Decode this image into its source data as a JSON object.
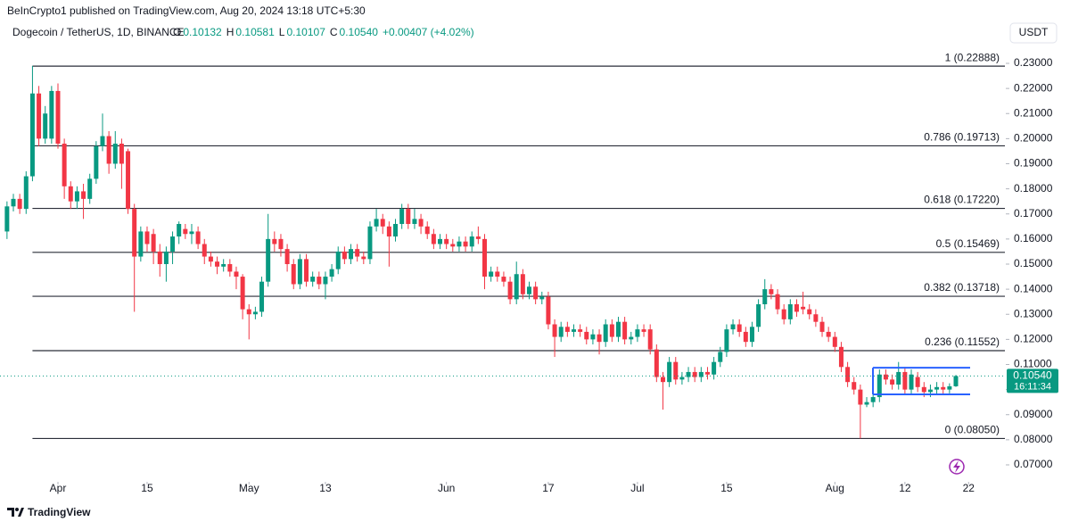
{
  "header": {
    "published": "BeInCrypto1 published on TradingView.com, Aug 20, 2024 13:18 UTC+5:30",
    "symbol": "Dogecoin / TetherUS, 1D, BINANCE",
    "ohlc": [
      {
        "key": "O",
        "value": "0.10132"
      },
      {
        "key": "H",
        "value": "0.10581"
      },
      {
        "key": "L",
        "value": "0.10107"
      },
      {
        "key": "C",
        "value": "0.10540"
      }
    ],
    "change": "+0.00407 (+4.02%)",
    "currency": "USDT"
  },
  "footer": {
    "brand": "TradingView"
  },
  "chart_data": {
    "type": "candlestick",
    "up_color": "#089981",
    "down_color": "#f23645",
    "open": [
      0.163,
      0.173,
      0.176,
      0.172,
      0.185,
      0.218,
      0.2,
      0.2,
      0.219,
      0.198,
      0.181,
      0.175,
      0.179,
      0.176,
      0.184,
      0.197,
      0.201,
      0.19,
      0.198,
      0.195,
      0.172,
      0.153,
      0.163,
      0.162,
      0.155,
      0.15,
      0.155,
      0.161,
      0.164,
      0.162,
      0.163,
      0.158,
      0.153,
      0.151,
      0.149,
      0.15,
      0.147,
      0.145,
      0.132,
      0.13,
      0.131,
      0.143,
      0.16,
      0.16,
      0.156,
      0.15,
      0.142,
      0.152,
      0.143,
      0.145,
      0.142,
      0.145,
      0.148,
      0.155,
      0.152,
      0.156,
      0.153,
      0.152,
      0.165,
      0.168,
      0.165,
      0.161,
      0.166,
      0.172,
      0.166,
      0.168,
      0.165,
      0.162,
      0.158,
      0.16,
      0.158,
      0.157,
      0.159,
      0.157,
      0.161,
      0.16,
      0.145,
      0.147,
      0.145,
      0.143,
      0.136,
      0.146,
      0.138,
      0.141,
      0.136,
      0.137,
      0.126,
      0.121,
      0.125,
      0.123,
      0.124,
      0.123,
      0.12,
      0.122,
      0.119,
      0.126,
      0.121,
      0.127,
      0.12,
      0.121,
      0.124,
      0.124,
      0.116,
      0.105,
      0.103,
      0.111,
      0.104,
      0.105,
      0.107,
      0.105,
      0.107,
      0.106,
      0.111,
      0.115,
      0.124,
      0.126,
      0.123,
      0.119,
      0.125,
      0.134,
      0.14,
      0.138,
      0.132,
      0.128,
      0.134,
      0.133,
      0.132,
      0.13,
      0.127,
      0.123,
      0.121,
      0.117,
      0.109,
      0.103,
      0.1,
      0.094,
      0.095,
      0.097,
      0.106,
      0.104,
      0.102,
      0.107,
      0.1,
      0.105,
      0.101,
      0.099,
      0.1,
      0.101,
      0.1,
      0.10132
    ],
    "high": [
      0.175,
      0.178,
      0.178,
      0.187,
      0.229,
      0.221,
      0.213,
      0.221,
      0.222,
      0.2,
      0.183,
      0.181,
      0.182,
      0.186,
      0.199,
      0.21,
      0.203,
      0.203,
      0.2,
      0.196,
      0.174,
      0.165,
      0.165,
      0.164,
      0.158,
      0.157,
      0.163,
      0.167,
      0.166,
      0.166,
      0.165,
      0.16,
      0.155,
      0.153,
      0.152,
      0.152,
      0.149,
      0.146,
      0.134,
      0.133,
      0.145,
      0.17,
      0.163,
      0.162,
      0.158,
      0.152,
      0.154,
      0.154,
      0.147,
      0.147,
      0.147,
      0.15,
      0.157,
      0.157,
      0.158,
      0.158,
      0.155,
      0.167,
      0.172,
      0.17,
      0.167,
      0.168,
      0.174,
      0.174,
      0.172,
      0.17,
      0.167,
      0.164,
      0.162,
      0.162,
      0.16,
      0.161,
      0.161,
      0.163,
      0.165,
      0.162,
      0.149,
      0.149,
      0.147,
      0.145,
      0.151,
      0.148,
      0.143,
      0.143,
      0.139,
      0.139,
      0.128,
      0.127,
      0.127,
      0.126,
      0.126,
      0.125,
      0.124,
      0.124,
      0.128,
      0.128,
      0.129,
      0.129,
      0.123,
      0.126,
      0.126,
      0.126,
      0.118,
      0.107,
      0.113,
      0.113,
      0.107,
      0.109,
      0.109,
      0.109,
      0.109,
      0.113,
      0.117,
      0.126,
      0.128,
      0.128,
      0.125,
      0.127,
      0.136,
      0.144,
      0.142,
      0.14,
      0.134,
      0.136,
      0.136,
      0.139,
      0.134,
      0.132,
      0.129,
      0.125,
      0.123,
      0.119,
      0.111,
      0.105,
      0.102,
      0.097,
      0.099,
      0.108,
      0.108,
      0.106,
      0.111,
      0.109,
      0.108,
      0.107,
      0.103,
      0.102,
      0.103,
      0.103,
      0.1025,
      0.10581
    ],
    "low": [
      0.16,
      0.171,
      0.17,
      0.17,
      0.183,
      0.197,
      0.198,
      0.198,
      0.196,
      0.176,
      0.172,
      0.172,
      0.168,
      0.174,
      0.182,
      0.195,
      0.186,
      0.188,
      0.18,
      0.17,
      0.131,
      0.151,
      0.155,
      0.15,
      0.145,
      0.143,
      0.15,
      0.158,
      0.16,
      0.158,
      0.156,
      0.15,
      0.149,
      0.146,
      0.147,
      0.145,
      0.14,
      0.128,
      0.12,
      0.128,
      0.129,
      0.141,
      0.155,
      0.153,
      0.147,
      0.14,
      0.14,
      0.141,
      0.141,
      0.14,
      0.136,
      0.143,
      0.146,
      0.15,
      0.15,
      0.151,
      0.15,
      0.15,
      0.163,
      0.162,
      0.149,
      0.159,
      0.164,
      0.164,
      0.164,
      0.162,
      0.16,
      0.156,
      0.156,
      0.156,
      0.155,
      0.155,
      0.155,
      0.155,
      0.158,
      0.14,
      0.143,
      0.143,
      0.141,
      0.134,
      0.134,
      0.136,
      0.136,
      0.134,
      0.134,
      0.124,
      0.113,
      0.119,
      0.121,
      0.121,
      0.121,
      0.118,
      0.118,
      0.114,
      0.117,
      0.119,
      0.119,
      0.118,
      0.118,
      0.119,
      0.121,
      0.114,
      0.103,
      0.092,
      0.101,
      0.102,
      0.102,
      0.103,
      0.103,
      0.103,
      0.104,
      0.104,
      0.109,
      0.113,
      0.122,
      0.121,
      0.117,
      0.117,
      0.123,
      0.132,
      0.136,
      0.13,
      0.126,
      0.126,
      0.129,
      0.13,
      0.128,
      0.125,
      0.121,
      0.119,
      0.115,
      0.107,
      0.101,
      0.098,
      0.0805,
      0.093,
      0.093,
      0.095,
      0.102,
      0.1,
      0.1,
      0.098,
      0.098,
      0.099,
      0.097,
      0.097,
      0.098,
      0.098,
      0.0985,
      0.10107
    ],
    "close": [
      0.173,
      0.176,
      0.172,
      0.185,
      0.218,
      0.2,
      0.21,
      0.219,
      0.198,
      0.181,
      0.175,
      0.179,
      0.176,
      0.184,
      0.197,
      0.201,
      0.19,
      0.198,
      0.19,
      0.172,
      0.153,
      0.163,
      0.158,
      0.155,
      0.15,
      0.155,
      0.161,
      0.166,
      0.162,
      0.163,
      0.158,
      0.153,
      0.151,
      0.149,
      0.15,
      0.147,
      0.145,
      0.132,
      0.13,
      0.131,
      0.143,
      0.16,
      0.158,
      0.156,
      0.15,
      0.142,
      0.152,
      0.143,
      0.145,
      0.142,
      0.145,
      0.148,
      0.155,
      0.152,
      0.156,
      0.153,
      0.152,
      0.165,
      0.168,
      0.165,
      0.161,
      0.166,
      0.172,
      0.166,
      0.168,
      0.165,
      0.162,
      0.158,
      0.16,
      0.158,
      0.157,
      0.159,
      0.157,
      0.161,
      0.16,
      0.145,
      0.147,
      0.145,
      0.143,
      0.136,
      0.146,
      0.138,
      0.141,
      0.136,
      0.137,
      0.126,
      0.121,
      0.125,
      0.123,
      0.124,
      0.123,
      0.12,
      0.122,
      0.119,
      0.126,
      0.121,
      0.127,
      0.12,
      0.121,
      0.124,
      0.123,
      0.116,
      0.105,
      0.103,
      0.111,
      0.104,
      0.105,
      0.107,
      0.105,
      0.107,
      0.106,
      0.111,
      0.115,
      0.124,
      0.126,
      0.123,
      0.119,
      0.125,
      0.134,
      0.14,
      0.138,
      0.132,
      0.128,
      0.134,
      0.131,
      0.132,
      0.13,
      0.127,
      0.123,
      0.121,
      0.117,
      0.109,
      0.103,
      0.1,
      0.094,
      0.095,
      0.097,
      0.106,
      0.104,
      0.102,
      0.107,
      0.1,
      0.106,
      0.101,
      0.099,
      0.1,
      0.101,
      0.1,
      0.1013,
      0.1054
    ],
    "xlim": [
      -1.1,
      156.7
    ],
    "xticks": [
      {
        "value": 8,
        "label": "Apr"
      },
      {
        "value": 22,
        "label": "15"
      },
      {
        "value": 38,
        "label": "May"
      },
      {
        "value": 50,
        "label": "13"
      },
      {
        "value": 69,
        "label": "Jun"
      },
      {
        "value": 85,
        "label": "17"
      },
      {
        "value": 99,
        "label": "Jul"
      },
      {
        "value": 113,
        "label": "15"
      },
      {
        "value": 130,
        "label": "Aug"
      },
      {
        "value": 141,
        "label": "12"
      },
      {
        "value": 151,
        "label": "22"
      }
    ],
    "ylim": [
      0.06324,
      0.23569
    ],
    "yticks": [
      {
        "value": 0.07,
        "label": "0.07000"
      },
      {
        "value": 0.08,
        "label": "0.08000"
      },
      {
        "value": 0.09,
        "label": "0.09000"
      },
      {
        "value": 0.1,
        "label": "0.10000"
      },
      {
        "value": 0.11,
        "label": "0.11000"
      },
      {
        "value": 0.12,
        "label": "0.12000"
      },
      {
        "value": 0.13,
        "label": "0.13000"
      },
      {
        "value": 0.14,
        "label": "0.14000"
      },
      {
        "value": 0.15,
        "label": "0.15000"
      },
      {
        "value": 0.16,
        "label": "0.16000"
      },
      {
        "value": 0.17,
        "label": "0.17000"
      },
      {
        "value": 0.18,
        "label": "0.18000"
      },
      {
        "value": 0.19,
        "label": "0.19000"
      },
      {
        "value": 0.2,
        "label": "0.20000"
      },
      {
        "value": 0.21,
        "label": "0.21000"
      },
      {
        "value": 0.22,
        "label": "0.22000"
      },
      {
        "value": 0.23,
        "label": "0.23000"
      }
    ],
    "fib_levels": [
      {
        "value": 0.22888,
        "label": "1 (0.22888)"
      },
      {
        "value": 0.19713,
        "label": "0.786 (0.19713)"
      },
      {
        "value": 0.1722,
        "label": "0.618 (0.17220)"
      },
      {
        "value": 0.15469,
        "label": "0.5 (0.15469)"
      },
      {
        "value": 0.13718,
        "label": "0.382 (0.13718)"
      },
      {
        "value": 0.11552,
        "label": "0.236 (0.11552)"
      },
      {
        "value": 0.0805,
        "label": "0 (0.08050)"
      }
    ],
    "channel": {
      "upper": 0.1087,
      "lower": 0.0981,
      "color": "#2962ff"
    },
    "last_price": {
      "value": 0.1054,
      "label": "0.10540"
    },
    "countdown": "16:11:34"
  }
}
